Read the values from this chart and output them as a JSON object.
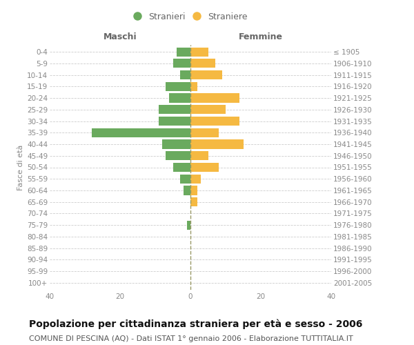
{
  "age_groups": [
    "0-4",
    "5-9",
    "10-14",
    "15-19",
    "20-24",
    "25-29",
    "30-34",
    "35-39",
    "40-44",
    "45-49",
    "50-54",
    "55-59",
    "60-64",
    "65-69",
    "70-74",
    "75-79",
    "80-84",
    "85-89",
    "90-94",
    "95-99",
    "100+"
  ],
  "birth_years": [
    "2001-2005",
    "1996-2000",
    "1991-1995",
    "1986-1990",
    "1981-1985",
    "1976-1980",
    "1971-1975",
    "1966-1970",
    "1961-1965",
    "1956-1960",
    "1951-1955",
    "1946-1950",
    "1941-1945",
    "1936-1940",
    "1931-1935",
    "1926-1930",
    "1921-1925",
    "1916-1920",
    "1911-1915",
    "1906-1910",
    "≤ 1905"
  ],
  "maschi": [
    4,
    5,
    3,
    7,
    6,
    9,
    9,
    28,
    8,
    7,
    5,
    3,
    2,
    0,
    0,
    1,
    0,
    0,
    0,
    0,
    0
  ],
  "femmine": [
    5,
    7,
    9,
    2,
    14,
    10,
    14,
    8,
    15,
    5,
    8,
    3,
    2,
    2,
    0,
    0,
    0,
    0,
    0,
    0,
    0
  ],
  "color_maschi": "#6aaa5e",
  "color_femmine": "#f5b942",
  "xlim": [
    -40,
    40
  ],
  "title": "Popolazione per cittadinanza straniera per età e sesso - 2006",
  "subtitle": "COMUNE DI PESCINA (AQ) - Dati ISTAT 1° gennaio 2006 - Elaborazione TUTTITALIA.IT",
  "ylabel_left": "Fasce di età",
  "header_left": "Maschi",
  "header_right": "Femmine",
  "legend_label_m": "Stranieri",
  "legend_label_f": "Straniere",
  "bg_color": "#ffffff",
  "grid_color": "#cccccc",
  "dashed_line_color": "#999966",
  "label_color": "#888888",
  "header_color": "#666666",
  "title_color": "#111111",
  "subtitle_color": "#555555",
  "title_fontsize": 10,
  "subtitle_fontsize": 8,
  "tick_fontsize": 7.5,
  "header_fontsize": 9,
  "legend_fontsize": 9,
  "bar_height": 0.78
}
